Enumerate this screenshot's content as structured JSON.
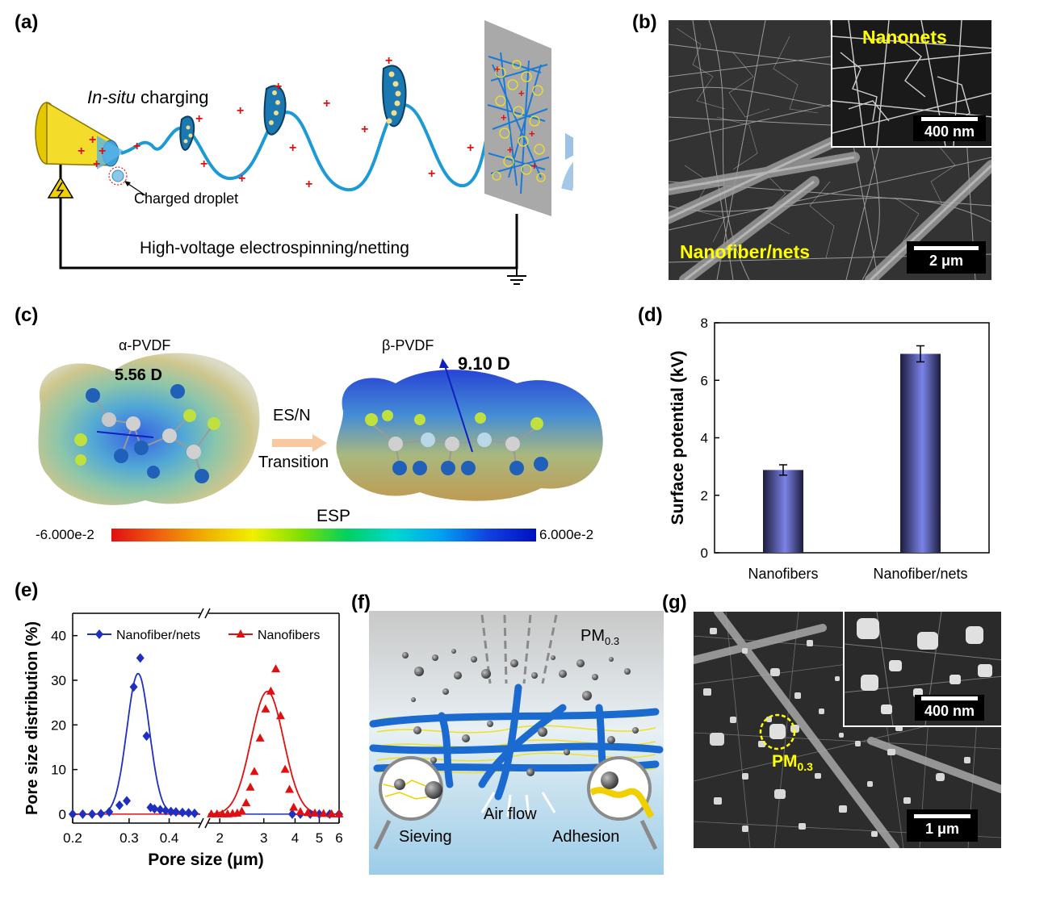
{
  "panels": {
    "a": {
      "label": "(a)",
      "insitu_italic": "In-situ",
      "insitu_rest": " charging",
      "droplet": "Charged droplet",
      "process": "High-voltage electrospinning/netting"
    },
    "b": {
      "label": "(b)",
      "inset_label": "Nanonets",
      "inset_scale": "400 nm",
      "main_label": "Nanofiber/nets",
      "main_scale": "2 μm"
    },
    "c": {
      "label": "(c)",
      "alpha_name": "α-PVDF",
      "alpha_dipole": "5.56 D",
      "beta_name": "β-PVDF",
      "beta_dipole": "9.10 D",
      "arrow_top": "ES/N",
      "arrow_bottom": "Transition",
      "colorbar_title": "ESP",
      "colorbar_min": "-6.000e-2",
      "colorbar_max": "6.000e-2"
    },
    "d": {
      "label": "(d)"
    },
    "e": {
      "label": "(e)"
    },
    "f": {
      "label": "(f)",
      "pm_base": "PM",
      "pm_sub": "0.3",
      "sieving": "Sieving",
      "airflow": "Air flow",
      "adhesion": "Adhesion"
    },
    "g": {
      "label": "(g)",
      "inset_scale": "400 nm",
      "pm_base": "PM",
      "pm_sub": "0.3",
      "main_scale": "1 μm"
    }
  },
  "chart_data": [
    {
      "panel": "d",
      "type": "bar",
      "categories": [
        "Nanofibers",
        "Nanofiber/nets"
      ],
      "values": [
        2.88,
        6.92
      ],
      "errors": [
        0.18,
        0.28
      ],
      "title": "",
      "xlabel": "",
      "ylabel": "Surface potential (kV)",
      "ylim": [
        0,
        8
      ],
      "yticks": [
        0,
        2,
        4,
        6,
        8
      ],
      "bar_color": "#7b83e8",
      "grid": false
    },
    {
      "panel": "e",
      "type": "scatter",
      "xlabel": "Pore size (μm)",
      "ylabel": "Pore size distribution (%)",
      "ylim": [
        -2,
        45
      ],
      "yticks": [
        0,
        10,
        20,
        30,
        40
      ],
      "x_segments": [
        {
          "range": [
            0.2,
            0.5
          ],
          "scale": "log",
          "ticks": [
            "0.2",
            "0.3",
            "0.4"
          ],
          "tick_values": [
            0.2,
            0.3,
            0.4
          ]
        },
        {
          "range": [
            1.8,
            6
          ],
          "scale": "log",
          "ticks": [
            "2",
            "3",
            "4",
            "5",
            "6"
          ],
          "tick_values": [
            2,
            3,
            4,
            5,
            6
          ]
        }
      ],
      "legend_placement": "top",
      "series": [
        {
          "name": "Nanofiber/nets",
          "color": "#1f2fbf",
          "marker": "diamond",
          "x": [
            0.2,
            0.215,
            0.23,
            0.245,
            0.26,
            0.28,
            0.295,
            0.31,
            0.325,
            0.34,
            0.35,
            0.36,
            0.375,
            0.39,
            0.405,
            0.42,
            0.44,
            0.46,
            0.48,
            3.9,
            4.2,
            4.6,
            5.0,
            5.5,
            6.0
          ],
          "y": [
            0,
            0,
            0,
            0.1,
            0.5,
            2.0,
            3.0,
            28.5,
            35.0,
            17.5,
            1.5,
            1.2,
            1.0,
            0.8,
            0.6,
            0.5,
            0.4,
            0.3,
            0.2,
            0,
            0,
            0,
            0,
            0,
            0
          ],
          "fit": {
            "center": 0.32,
            "height": 31.5,
            "width_log": 0.035
          }
        },
        {
          "name": "Nanofibers",
          "color": "#e01010",
          "marker": "triangle",
          "x": [
            1.85,
            1.95,
            2.05,
            2.15,
            2.25,
            2.35,
            2.45,
            2.55,
            2.65,
            2.75,
            2.9,
            3.05,
            3.2,
            3.35,
            3.5,
            3.65,
            3.8,
            3.95,
            4.2,
            4.5,
            4.8,
            5.2,
            5.6,
            6.0
          ],
          "y": [
            0,
            0,
            0,
            0,
            0.1,
            0.2,
            0.6,
            2.5,
            6.0,
            9.5,
            17.0,
            23.5,
            27.5,
            32.5,
            22.0,
            10.0,
            5.5,
            1.5,
            0.5,
            0.3,
            0.2,
            0.1,
            0,
            0
          ],
          "fit": {
            "center": 3.1,
            "height": 27.5,
            "width_log": 0.065
          }
        }
      ]
    }
  ]
}
